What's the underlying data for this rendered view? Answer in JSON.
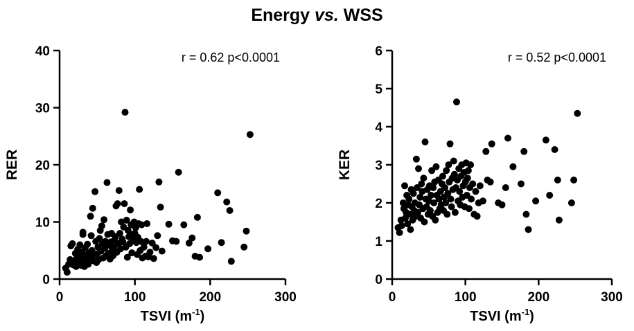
{
  "figure": {
    "title_prefix": "Energy ",
    "title_italic": "vs.",
    "title_suffix": " WSS"
  },
  "chart_data": [
    {
      "type": "scatter",
      "xlabel": "TSVI (m",
      "xlabel_sup": "-1",
      "xlabel_close": ")",
      "ylabel": "RER",
      "annotation": "r = 0.62 p<0.0001",
      "xlim": [
        0,
        300
      ],
      "ylim": [
        0,
        40
      ],
      "xticks": [
        "0",
        "100",
        "200",
        "300"
      ],
      "yticks": [
        "0",
        "10",
        "20",
        "30",
        "40"
      ],
      "grid": false,
      "color": "#000000",
      "points": [
        [
          8,
          1.9
        ],
        [
          10,
          1.2
        ],
        [
          12,
          2.6
        ],
        [
          14,
          3.4
        ],
        [
          15,
          5.8
        ],
        [
          17,
          6.2
        ],
        [
          18,
          2.5
        ],
        [
          20,
          3.1
        ],
        [
          21,
          4.5
        ],
        [
          22,
          2.2
        ],
        [
          23,
          3.8
        ],
        [
          24,
          5.2
        ],
        [
          25,
          2.8
        ],
        [
          26,
          4.0
        ],
        [
          27,
          6.0
        ],
        [
          28,
          3.3
        ],
        [
          29,
          2.4
        ],
        [
          30,
          4.8
        ],
        [
          31,
          7.8
        ],
        [
          31,
          8.2
        ],
        [
          32,
          3.6
        ],
        [
          33,
          2.2
        ],
        [
          34,
          5.5
        ],
        [
          35,
          4.1
        ],
        [
          36,
          3.0
        ],
        [
          37,
          6.1
        ],
        [
          38,
          2.6
        ],
        [
          39,
          4.6
        ],
        [
          40,
          3.8
        ],
        [
          41,
          11.0
        ],
        [
          42,
          7.6
        ],
        [
          43,
          5.0
        ],
        [
          44,
          12.4
        ],
        [
          45,
          3.2
        ],
        [
          46,
          4.3
        ],
        [
          47,
          15.3
        ],
        [
          48,
          6.6
        ],
        [
          49,
          2.9
        ],
        [
          50,
          4.4
        ],
        [
          51,
          5.6
        ],
        [
          52,
          3.4
        ],
        [
          53,
          7.1
        ],
        [
          54,
          8.5
        ],
        [
          55,
          4.9
        ],
        [
          56,
          9.3
        ],
        [
          57,
          6.2
        ],
        [
          58,
          3.7
        ],
        [
          59,
          10.4
        ],
        [
          60,
          5.4
        ],
        [
          61,
          6.6
        ],
        [
          62,
          4.1
        ],
        [
          63,
          16.9
        ],
        [
          64,
          7.8
        ],
        [
          65,
          4.5
        ],
        [
          66,
          5.9
        ],
        [
          67,
          3.5
        ],
        [
          68,
          6.5
        ],
        [
          69,
          8.0
        ],
        [
          70,
          5.0
        ],
        [
          71,
          4.1
        ],
        [
          72,
          5.6
        ],
        [
          73,
          6.8
        ],
        [
          74,
          7.4
        ],
        [
          75,
          12.8
        ],
        [
          76,
          4.7
        ],
        [
          77,
          13.2
        ],
        [
          78,
          6.2
        ],
        [
          79,
          15.5
        ],
        [
          80,
          8.0
        ],
        [
          81,
          5.3
        ],
        [
          82,
          10.0
        ],
        [
          83,
          7.0
        ],
        [
          84,
          6.5
        ],
        [
          85,
          9.1
        ],
        [
          86,
          13.2
        ],
        [
          87,
          29.2
        ],
        [
          88,
          5.6
        ],
        [
          89,
          10.3
        ],
        [
          90,
          3.8
        ],
        [
          91,
          8.5
        ],
        [
          92,
          7.4
        ],
        [
          93,
          6.2
        ],
        [
          94,
          12.1
        ],
        [
          95,
          9.5
        ],
        [
          96,
          4.6
        ],
        [
          97,
          7.8
        ],
        [
          98,
          6.7
        ],
        [
          99,
          10.0
        ],
        [
          100,
          8.0
        ],
        [
          101,
          9.0
        ],
        [
          102,
          6.4
        ],
        [
          103,
          4.3
        ],
        [
          104,
          7.3
        ],
        [
          105,
          9.7
        ],
        [
          106,
          15.7
        ],
        [
          107,
          5.0
        ],
        [
          108,
          6.6
        ],
        [
          109,
          9.5
        ],
        [
          110,
          3.7
        ],
        [
          112,
          5.6
        ],
        [
          114,
          4.0
        ],
        [
          115,
          6.6
        ],
        [
          116,
          9.7
        ],
        [
          118,
          3.9
        ],
        [
          120,
          4.7
        ],
        [
          123,
          6.3
        ],
        [
          125,
          3.6
        ],
        [
          128,
          5.5
        ],
        [
          130,
          7.6
        ],
        [
          132,
          17.0
        ],
        [
          134,
          12.6
        ],
        [
          136,
          4.9
        ],
        [
          145,
          9.6
        ],
        [
          150,
          6.7
        ],
        [
          155,
          6.6
        ],
        [
          158,
          18.7
        ],
        [
          165,
          9.5
        ],
        [
          172,
          6.3
        ],
        [
          176,
          7.2
        ],
        [
          180,
          4.0
        ],
        [
          183,
          10.8
        ],
        [
          186,
          3.8
        ],
        [
          197,
          5.3
        ],
        [
          210,
          15.1
        ],
        [
          215,
          6.4
        ],
        [
          222,
          13.5
        ],
        [
          226,
          12.0
        ],
        [
          228,
          3.1
        ],
        [
          245,
          5.6
        ],
        [
          248,
          8.4
        ],
        [
          253,
          25.3
        ]
      ]
    },
    {
      "type": "scatter",
      "xlabel": "TSVI (m",
      "xlabel_sup": "-1",
      "xlabel_close": ")",
      "ylabel": "KER",
      "annotation": "r = 0.52 p<0.0001",
      "xlim": [
        0,
        300
      ],
      "ylim": [
        0,
        6
      ],
      "xticks": [
        "0",
        "100",
        "200",
        "300"
      ],
      "yticks": [
        "0",
        "1",
        "2",
        "3",
        "4",
        "5",
        "6"
      ],
      "grid": false,
      "color": "#000000",
      "points": [
        [
          8,
          1.35
        ],
        [
          10,
          1.22
        ],
        [
          12,
          1.55
        ],
        [
          13,
          1.4
        ],
        [
          15,
          2.0
        ],
        [
          16,
          1.85
        ],
        [
          17,
          2.45
        ],
        [
          18,
          1.6
        ],
        [
          19,
          1.75
        ],
        [
          20,
          2.2
        ],
        [
          21,
          1.45
        ],
        [
          22,
          1.95
        ],
        [
          23,
          2.1
        ],
        [
          24,
          1.7
        ],
        [
          25,
          1.3
        ],
        [
          26,
          2.35
        ],
        [
          27,
          1.9
        ],
        [
          28,
          1.55
        ],
        [
          29,
          2.25
        ],
        [
          30,
          1.8
        ],
        [
          31,
          2.0
        ],
        [
          32,
          1.65
        ],
        [
          33,
          3.15
        ],
        [
          34,
          2.4
        ],
        [
          35,
          1.75
        ],
        [
          36,
          2.9
        ],
        [
          37,
          1.95
        ],
        [
          38,
          2.15
        ],
        [
          39,
          1.6
        ],
        [
          40,
          2.5
        ],
        [
          41,
          2.3
        ],
        [
          42,
          1.85
        ],
        [
          43,
          2.65
        ],
        [
          44,
          1.5
        ],
        [
          45,
          3.6
        ],
        [
          46,
          2.1
        ],
        [
          47,
          1.9
        ],
        [
          48,
          2.35
        ],
        [
          49,
          1.7
        ],
        [
          50,
          2.05
        ],
        [
          51,
          2.45
        ],
        [
          52,
          1.8
        ],
        [
          53,
          2.2
        ],
        [
          54,
          2.85
        ],
        [
          55,
          1.65
        ],
        [
          56,
          2.4
        ],
        [
          57,
          2.0
        ],
        [
          58,
          2.55
        ],
        [
          59,
          1.55
        ],
        [
          60,
          2.95
        ],
        [
          61,
          2.2
        ],
        [
          62,
          1.75
        ],
        [
          63,
          2.6
        ],
        [
          64,
          2.1
        ],
        [
          65,
          1.85
        ],
        [
          66,
          2.3
        ],
        [
          67,
          1.95
        ],
        [
          68,
          2.5
        ],
        [
          69,
          2.7
        ],
        [
          70,
          1.8
        ],
        [
          71,
          2.15
        ],
        [
          72,
          2.4
        ],
        [
          73,
          2.0
        ],
        [
          74,
          2.85
        ],
        [
          75,
          1.7
        ],
        [
          76,
          2.25
        ],
        [
          77,
          3.0
        ],
        [
          78,
          2.55
        ],
        [
          79,
          3.55
        ],
        [
          80,
          2.1
        ],
        [
          81,
          1.9
        ],
        [
          82,
          2.65
        ],
        [
          83,
          2.35
        ],
        [
          84,
          3.1
        ],
        [
          85,
          2.75
        ],
        [
          86,
          1.75
        ],
        [
          87,
          2.4
        ],
        [
          88,
          4.65
        ],
        [
          89,
          2.6
        ],
        [
          90,
          2.05
        ],
        [
          91,
          2.9
        ],
        [
          92,
          2.3
        ],
        [
          93,
          1.95
        ],
        [
          94,
          2.7
        ],
        [
          95,
          3.0
        ],
        [
          96,
          2.15
        ],
        [
          97,
          2.45
        ],
        [
          98,
          2.8
        ],
        [
          99,
          1.9
        ],
        [
          100,
          2.55
        ],
        [
          101,
          3.05
        ],
        [
          102,
          2.2
        ],
        [
          103,
          2.65
        ],
        [
          104,
          2.85
        ],
        [
          105,
          1.85
        ],
        [
          106,
          2.4
        ],
        [
          107,
          3.0
        ],
        [
          108,
          2.1
        ],
        [
          110,
          2.5
        ],
        [
          112,
          1.7
        ],
        [
          114,
          2.3
        ],
        [
          116,
          1.65
        ],
        [
          118,
          2.0
        ],
        [
          120,
          2.45
        ],
        [
          124,
          2.05
        ],
        [
          128,
          3.35
        ],
        [
          130,
          2.6
        ],
        [
          134,
          2.55
        ],
        [
          136,
          3.55
        ],
        [
          145,
          2.0
        ],
        [
          150,
          1.95
        ],
        [
          155,
          2.4
        ],
        [
          158,
          3.7
        ],
        [
          165,
          2.95
        ],
        [
          176,
          2.5
        ],
        [
          180,
          3.35
        ],
        [
          183,
          1.7
        ],
        [
          186,
          1.3
        ],
        [
          196,
          2.05
        ],
        [
          210,
          3.65
        ],
        [
          215,
          2.2
        ],
        [
          222,
          3.4
        ],
        [
          226,
          2.6
        ],
        [
          228,
          1.55
        ],
        [
          245,
          2.0
        ],
        [
          248,
          2.6
        ],
        [
          253,
          4.35
        ]
      ]
    }
  ]
}
